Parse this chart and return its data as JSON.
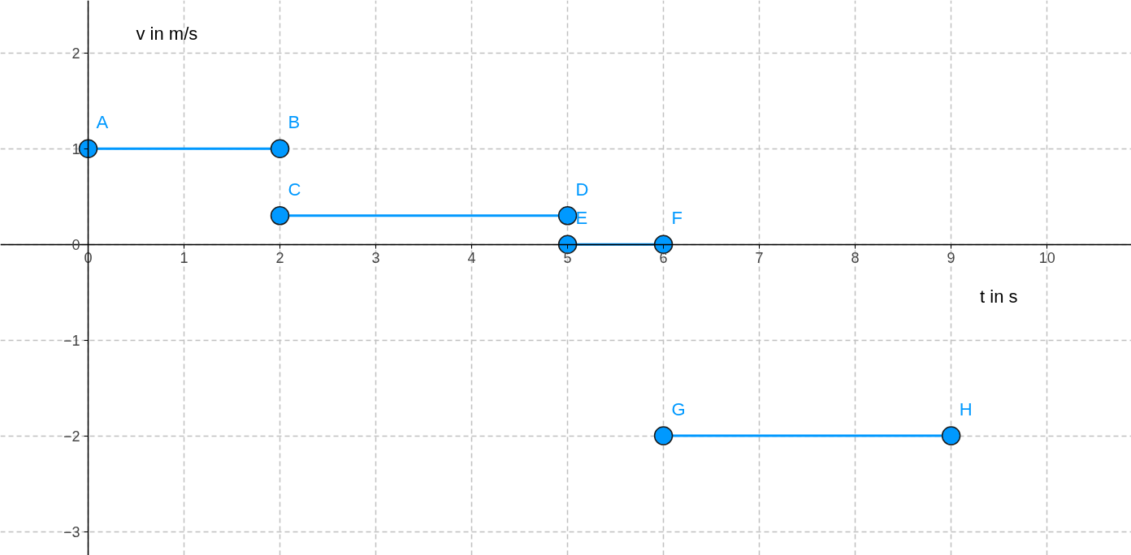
{
  "chart_data": {
    "type": "line",
    "xlabel": "t in s",
    "ylabel": "v in m/s",
    "xlim": [
      -0.915,
      10.88
    ],
    "ylim": [
      -3.25,
      2.55
    ],
    "xticks": [
      0,
      1,
      2,
      3,
      4,
      5,
      6,
      7,
      8,
      9,
      10
    ],
    "yticks": [
      -3,
      -2,
      -1,
      0,
      1,
      2
    ],
    "grid": true,
    "marker": "circle",
    "line_style": "solid",
    "series": [
      {
        "color": "#0099ff",
        "x": [
          0,
          2
        ],
        "values": [
          1,
          1
        ]
      },
      {
        "color": "#0099ff",
        "x": [
          2,
          5
        ],
        "values": [
          0.3,
          0.3
        ]
      },
      {
        "color": "#0099ff",
        "x": [
          5,
          6
        ],
        "values": [
          0,
          0
        ]
      },
      {
        "color": "#0099ff",
        "x": [
          6,
          9
        ],
        "values": [
          -2,
          -2
        ]
      }
    ],
    "annotations": [
      {
        "text": "A",
        "x": 0,
        "y": 1
      },
      {
        "text": "B",
        "x": 2,
        "y": 1
      },
      {
        "text": "C",
        "x": 2,
        "y": 0.3
      },
      {
        "text": "D",
        "x": 5,
        "y": 0.3
      },
      {
        "text": "E",
        "x": 5,
        "y": 0
      },
      {
        "text": "F",
        "x": 6,
        "y": 0
      },
      {
        "text": "G",
        "x": 6,
        "y": -2
      },
      {
        "text": "H",
        "x": 9,
        "y": -2
      }
    ]
  }
}
